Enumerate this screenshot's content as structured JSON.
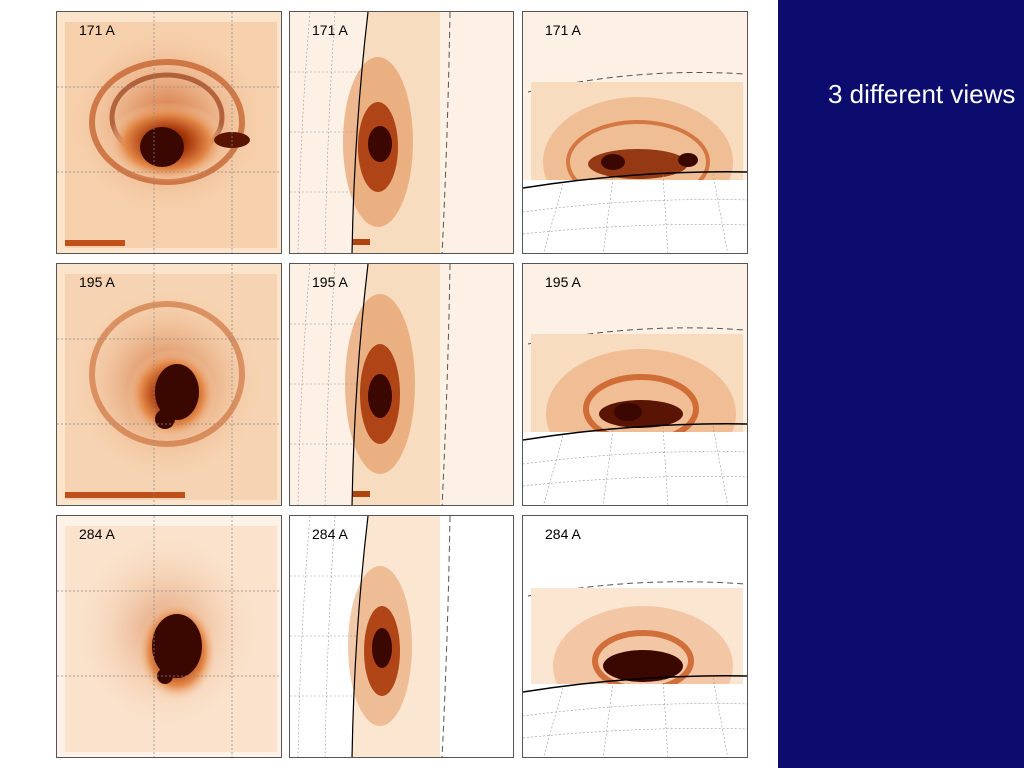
{
  "side_caption": "3 different views",
  "colors": {
    "side_background": "#0b0c6e",
    "caption": "#ffffff",
    "emission_dark": "#3a0800",
    "emission_mid": "#c24a0e",
    "emission_light": "#f6c89c",
    "panel_background": "#fdf0e4"
  },
  "rows": [
    {
      "wavelength_label": "171 A",
      "views": [
        "face-on",
        "limb",
        "side"
      ]
    },
    {
      "wavelength_label": "195 A",
      "views": [
        "face-on",
        "limb",
        "side"
      ]
    },
    {
      "wavelength_label": "284 A",
      "views": [
        "face-on",
        "limb",
        "side"
      ]
    }
  ]
}
